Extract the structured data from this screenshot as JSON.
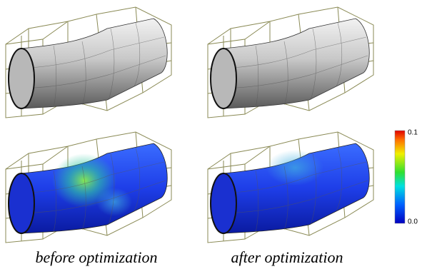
{
  "captions": {
    "left": "before optimization",
    "right": "after optimization"
  },
  "colorbar": {
    "top_label": "0.1",
    "bottom_label": "0.0"
  }
}
